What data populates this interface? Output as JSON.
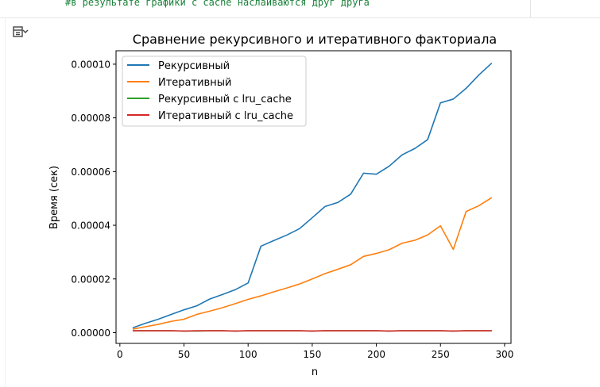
{
  "code_cell": {
    "comment": "#в результате графики с cache наслаиваются друг друга"
  },
  "output": {
    "icon": "output-toggle-icon"
  },
  "colors": {
    "series": [
      "#1f77b4",
      "#ff7f0e",
      "#2ca02c",
      "#d62728"
    ],
    "code_comment": "#188038"
  },
  "chart_data": {
    "type": "line",
    "title": "Сравнение рекурсивного и итеративного факториала",
    "xlabel": "n",
    "ylabel": "Время (сек)",
    "xlim": [
      -3,
      305
    ],
    "ylim": [
      -4e-06,
      0.000105
    ],
    "x_ticks": [
      0,
      50,
      100,
      150,
      200,
      250,
      300
    ],
    "x_tick_labels": [
      "0",
      "50",
      "100",
      "150",
      "200",
      "250",
      "300"
    ],
    "y_ticks": [
      0,
      2e-05,
      4e-05,
      6e-05,
      8e-05,
      0.0001
    ],
    "y_tick_labels": [
      "0.00000",
      "0.00002",
      "0.00004",
      "0.00006",
      "0.00008",
      "0.00010"
    ],
    "grid": false,
    "legend_position": "top-left",
    "x": [
      10,
      20,
      30,
      40,
      50,
      60,
      70,
      80,
      90,
      100,
      110,
      120,
      130,
      140,
      150,
      160,
      170,
      180,
      190,
      200,
      210,
      220,
      230,
      240,
      250,
      260,
      270,
      280,
      290
    ],
    "series": [
      {
        "name": "Рекурсивный",
        "values": [
          1.8e-06,
          3.5e-06,
          5e-06,
          6.8e-06,
          8.5e-06,
          1e-05,
          1.25e-05,
          1.42e-05,
          1.6e-05,
          1.85e-05,
          3.22e-05,
          3.43e-05,
          3.63e-05,
          3.87e-05,
          4.28e-05,
          4.7e-05,
          4.85e-05,
          5.16e-05,
          5.94e-05,
          5.9e-05,
          6.2e-05,
          6.62e-05,
          6.86e-05,
          7.19e-05,
          8.56e-05,
          8.7e-05,
          9.1e-05,
          9.6e-05,
          0.0001004
        ]
      },
      {
        "name": "Итеративный",
        "values": [
          1.3e-06,
          2.2e-06,
          3.1e-06,
          4.2e-06,
          5e-06,
          6.8e-06,
          8e-06,
          9.3e-06,
          1.08e-05,
          1.24e-05,
          1.37e-05,
          1.52e-05,
          1.66e-05,
          1.81e-05,
          2e-05,
          2.2e-05,
          2.36e-05,
          2.53e-05,
          2.84e-05,
          2.95e-05,
          3.09e-05,
          3.33e-05,
          3.44e-05,
          3.64e-05,
          3.98e-05,
          3.1e-05,
          4.51e-05,
          4.73e-05,
          5.03e-05
        ]
      },
      {
        "name": "Рекурсивный с lru_cache",
        "values": [
          7e-07,
          7e-07,
          7e-07,
          7e-07,
          6e-07,
          6e-07,
          7e-07,
          7e-07,
          6e-07,
          7e-07,
          7e-07,
          7e-07,
          7e-07,
          7e-07,
          6e-07,
          7e-07,
          7e-07,
          7e-07,
          7e-07,
          7e-07,
          6e-07,
          7e-07,
          7e-07,
          7e-07,
          7e-07,
          6e-07,
          7e-07,
          7e-07,
          7e-07
        ]
      },
      {
        "name": "Итеративный с lru_cache",
        "values": [
          7e-07,
          7e-07,
          7e-07,
          7e-07,
          6e-07,
          7e-07,
          7e-07,
          7e-07,
          6e-07,
          7e-07,
          7e-07,
          7e-07,
          7e-07,
          7e-07,
          6e-07,
          7e-07,
          7e-07,
          7e-07,
          7e-07,
          7e-07,
          6e-07,
          7e-07,
          7e-07,
          7e-07,
          7e-07,
          6e-07,
          7e-07,
          7e-07,
          7e-07
        ]
      }
    ]
  }
}
